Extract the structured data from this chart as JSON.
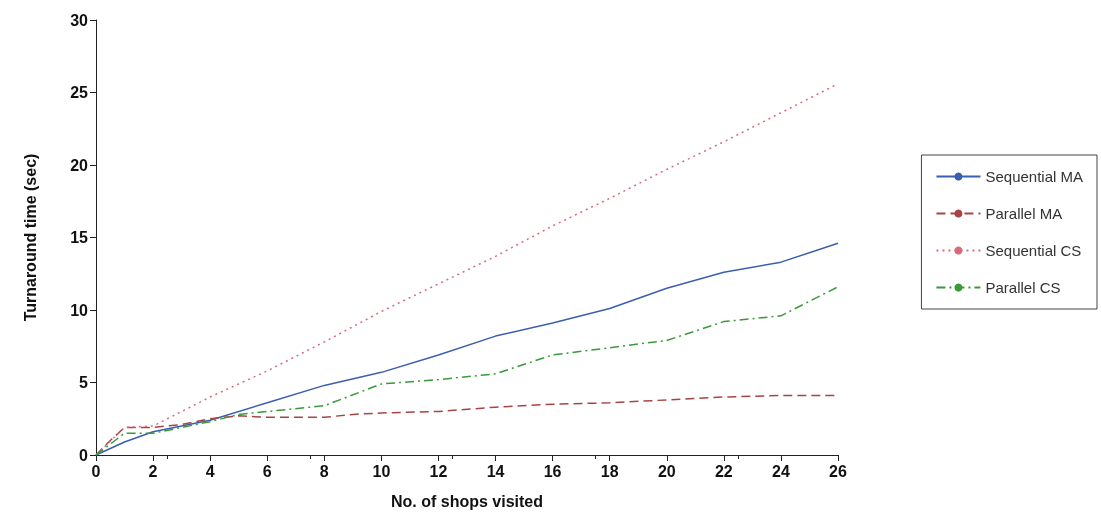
{
  "chart_data": {
    "type": "line",
    "xlabel": "No. of shops visited",
    "ylabel": "Turnaround time (sec)",
    "xlim": [
      0,
      26
    ],
    "xticks": [
      0,
      2,
      4,
      6,
      8,
      10,
      12,
      14,
      16,
      18,
      20,
      22,
      24,
      26
    ],
    "ylim": [
      0,
      30
    ],
    "yticks": [
      0,
      5,
      10,
      15,
      20,
      25,
      30
    ],
    "grid": false,
    "legend": "right",
    "marker": "none",
    "series": [
      {
        "name": "Sequential MA",
        "color": "#3a5fb0",
        "line_style": "solid",
        "x": [
          0,
          1,
          2,
          4,
          6,
          8,
          10,
          12,
          14,
          16,
          18,
          20,
          22,
          24,
          26
        ],
        "values": [
          0,
          0.9,
          1.6,
          2.4,
          3.6,
          4.8,
          5.7,
          6.9,
          8.2,
          9.1,
          10.1,
          11.5,
          12.6,
          13.3,
          14.6
        ]
      },
      {
        "name": "Parallel MA",
        "color": "#a84444",
        "line_style": "dashed",
        "x": [
          0,
          0.5,
          1,
          2,
          3,
          4,
          5,
          6,
          8,
          9,
          10,
          12,
          14,
          16,
          18,
          20,
          22,
          24,
          26
        ],
        "values": [
          0,
          1,
          1.9,
          1.9,
          2.1,
          2.5,
          2.7,
          2.6,
          2.6,
          2.8,
          2.9,
          3,
          3.3,
          3.5,
          3.6,
          3.8,
          4,
          4.1,
          4.1
        ]
      },
      {
        "name": "Sequential CS",
        "color": "#d86a7a",
        "line_style": "dotted",
        "x": [
          0,
          1,
          2,
          4,
          6,
          8,
          10,
          12,
          14,
          16,
          18,
          20,
          22,
          24,
          26
        ],
        "values": [
          0,
          1.9,
          2,
          4,
          5.8,
          7.8,
          9.9,
          11.8,
          13.7,
          15.8,
          17.7,
          19.7,
          21.6,
          23.6,
          25.6
        ]
      },
      {
        "name": "Parallel CS",
        "color": "#3a9a3a",
        "line_style": "dashdot",
        "x": [
          0,
          1,
          2,
          4,
          5,
          6,
          8,
          10,
          12,
          14,
          16,
          18,
          20,
          22,
          24,
          26
        ],
        "values": [
          0,
          1.5,
          1.5,
          2.3,
          2.8,
          3,
          3.4,
          4.9,
          5.2,
          5.6,
          6.9,
          7.4,
          7.9,
          9.2,
          9.6,
          11.6
        ]
      }
    ]
  }
}
